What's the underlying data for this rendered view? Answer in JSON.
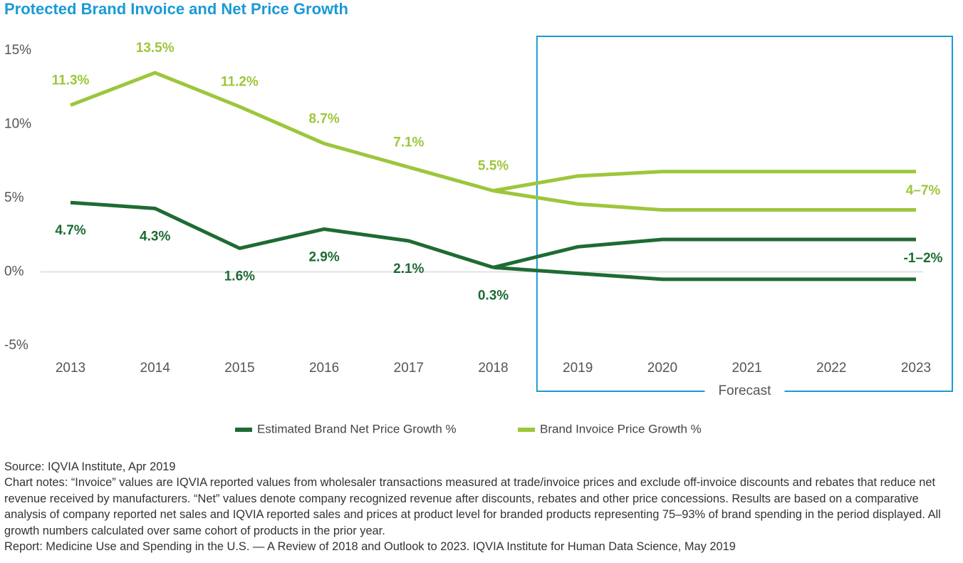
{
  "chart_data": {
    "type": "line",
    "title": "Protected Brand Invoice and Net Price Growth",
    "categories": [
      "2013",
      "2014",
      "2015",
      "2016",
      "2017",
      "2018",
      "2019",
      "2020",
      "2021",
      "2022",
      "2023"
    ],
    "ylim": [
      -5,
      15
    ],
    "yticks": [
      {
        "value": -5,
        "label": "-5%"
      },
      {
        "value": 0,
        "label": "0%"
      },
      {
        "value": 5,
        "label": "5%"
      },
      {
        "value": 10,
        "label": "10%"
      },
      {
        "value": 15,
        "label": "15%"
      }
    ],
    "zero_line": true,
    "legend": "bottom",
    "forecast_label": "Forecast",
    "series": [
      {
        "name": "Estimated Brand Net Price Growth %",
        "color": "#1e6b34",
        "values": [
          4.7,
          4.3,
          1.6,
          2.9,
          2.1,
          0.3,
          null,
          null,
          null,
          null,
          null
        ],
        "value_labels": [
          "4.7%",
          "4.3%",
          "1.6%",
          "2.9%",
          "2.1%",
          "0.3%",
          null,
          null,
          null,
          null,
          null
        ],
        "forecast_high": [
          null,
          null,
          null,
          null,
          null,
          0.3,
          1.7,
          2.2,
          2.2,
          2.2,
          2.2
        ],
        "forecast_low": [
          null,
          null,
          null,
          null,
          null,
          0.3,
          -0.1,
          -0.5,
          -0.5,
          -0.5,
          -0.5
        ],
        "range_label": "-1–2%",
        "label_side": "below"
      },
      {
        "name": "Brand Invoice Price Growth %",
        "color": "#9dc63c",
        "values": [
          11.3,
          13.5,
          11.2,
          8.7,
          7.1,
          5.5,
          null,
          null,
          null,
          null,
          null
        ],
        "value_labels": [
          "11.3%",
          "13.5%",
          "11.2%",
          "8.7%",
          "7.1%",
          "5.5%",
          null,
          null,
          null,
          null,
          null
        ],
        "forecast_high": [
          null,
          null,
          null,
          null,
          null,
          5.5,
          6.5,
          6.8,
          6.8,
          6.8,
          6.8
        ],
        "forecast_low": [
          null,
          null,
          null,
          null,
          null,
          5.5,
          4.6,
          4.2,
          4.2,
          4.2,
          4.2
        ],
        "range_label": "4–7%",
        "label_side": "above"
      }
    ]
  },
  "notes": {
    "source": "Source: IQVIA Institute, Apr 2019",
    "chart_notes": "Chart notes: “Invoice” values are IQVIA reported values from wholesaler transactions measured at trade/invoice prices and exclude off-invoice discounts and rebates that reduce net revenue received by manufacturers. “Net” values denote company recognized revenue after discounts, rebates and other price concessions. Results are based on a comparative analysis of company reported net sales and IQVIA reported sales and prices at product level for branded products representing 75–93% of brand spending in the period displayed. All growth numbers calculated over same cohort of products in the prior year.",
    "report": "Report: Medicine Use and Spending in the U.S. — A Review of 2018 and Outlook to 2023. IQVIA Institute for Human Data Science, May 2019"
  }
}
